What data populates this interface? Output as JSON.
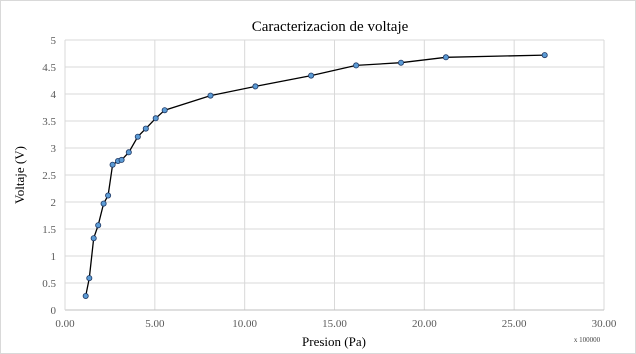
{
  "chart_data": {
    "type": "scatter",
    "title": "Caracterizacion de voltaje",
    "xlabel": "Presion (Pa)",
    "ylabel": "Voltaje (V)",
    "x_multiplier_label": "x 100000",
    "xlim": [
      0,
      30
    ],
    "ylim": [
      0,
      5
    ],
    "x_ticks": [
      "0.00",
      "5.00",
      "10.00",
      "15.00",
      "20.00",
      "25.00",
      "30.00"
    ],
    "y_ticks": [
      "0",
      "0.5",
      "1",
      "1.5",
      "2",
      "2.5",
      "3",
      "3.5",
      "4",
      "4.5",
      "5"
    ],
    "grid": true,
    "legend": "none",
    "series": [
      {
        "line_color": "#000000",
        "marker_color": "#5b9bd5",
        "points": [
          [
            1.15,
            0.26
          ],
          [
            1.35,
            0.59
          ],
          [
            1.6,
            1.33
          ],
          [
            1.85,
            1.57
          ],
          [
            2.15,
            1.97
          ],
          [
            2.4,
            2.12
          ],
          [
            2.65,
            2.69
          ],
          [
            2.95,
            2.76
          ],
          [
            3.15,
            2.78
          ],
          [
            3.55,
            2.92
          ],
          [
            4.05,
            3.21
          ],
          [
            4.5,
            3.36
          ],
          [
            5.05,
            3.55
          ],
          [
            5.55,
            3.7
          ],
          [
            8.1,
            3.97
          ],
          [
            10.6,
            4.14
          ],
          [
            13.7,
            4.34
          ],
          [
            16.2,
            4.53
          ],
          [
            18.7,
            4.58
          ],
          [
            21.2,
            4.68
          ],
          [
            26.7,
            4.72
          ]
        ]
      }
    ]
  }
}
